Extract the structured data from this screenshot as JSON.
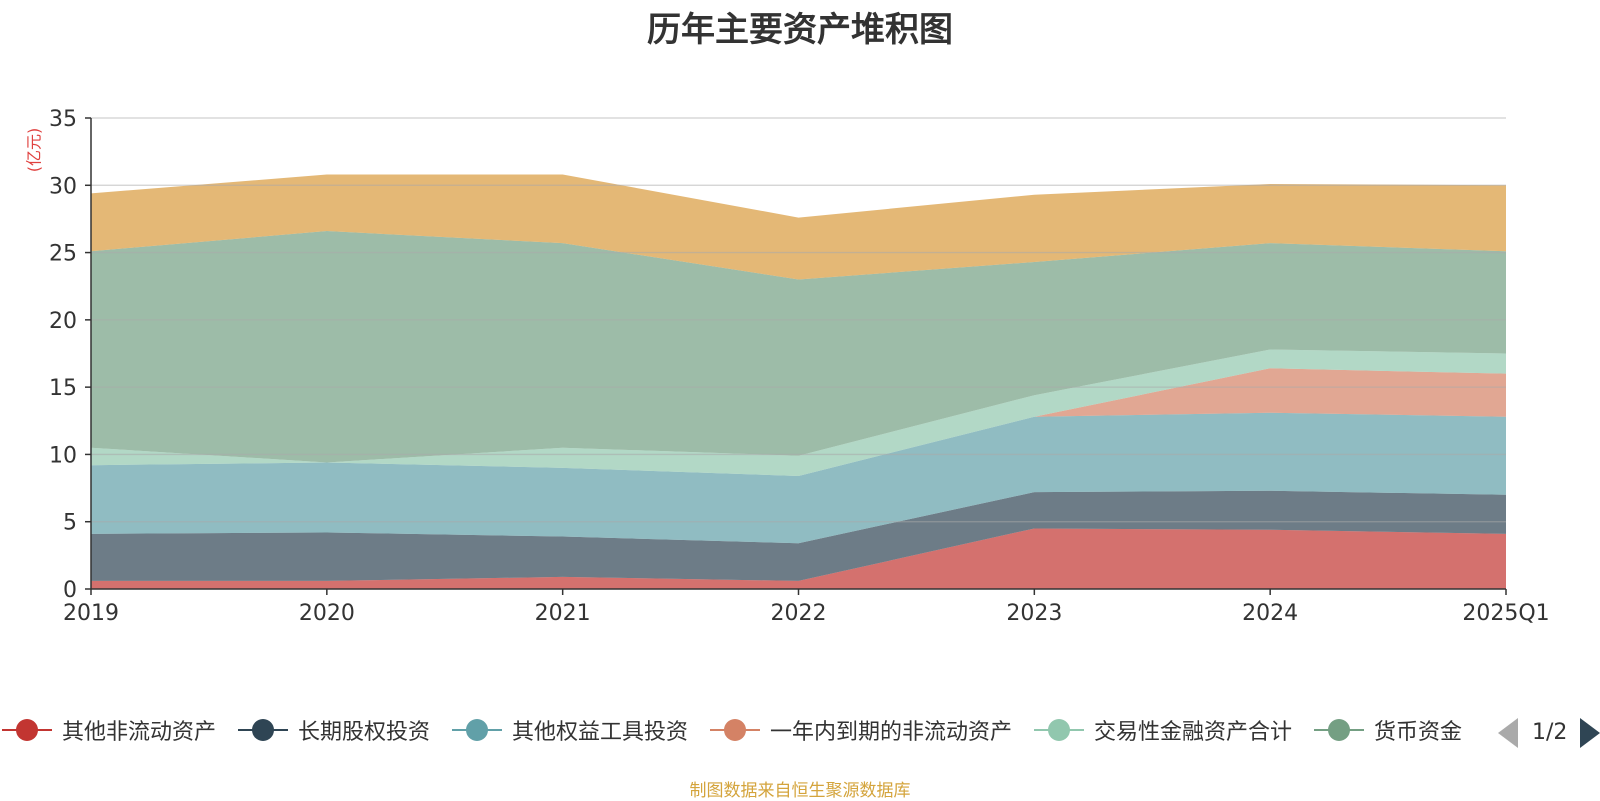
{
  "chart_data": {
    "type": "area",
    "stacked": true,
    "title": "历年主要资产堆积图",
    "ylabel": "(亿元)",
    "xlabel": "",
    "categories": [
      "2019",
      "2020",
      "2021",
      "2022",
      "2023",
      "2024",
      "2025Q1"
    ],
    "ylim": [
      0,
      35
    ],
    "yticks": [
      0,
      5,
      10,
      15,
      20,
      25,
      30,
      35
    ],
    "grid": true,
    "legend_position": "bottom",
    "series": [
      {
        "name": "其他非流动资产",
        "color": "#c23531",
        "values": [
          0.6,
          0.6,
          0.9,
          0.6,
          4.5,
          4.4,
          4.1
        ]
      },
      {
        "name": "长期股权投资",
        "color": "#2f4554",
        "values": [
          3.5,
          3.6,
          3.0,
          2.8,
          2.7,
          2.9,
          2.9
        ]
      },
      {
        "name": "其他权益工具投资",
        "color": "#61a0a8",
        "values": [
          5.1,
          5.2,
          5.1,
          5.0,
          5.6,
          5.8,
          5.8
        ]
      },
      {
        "name": "一年内到期的非流动资产",
        "color": "#d48265",
        "values": [
          0.0,
          0.0,
          0.0,
          0.0,
          0.0,
          3.3,
          3.2
        ]
      },
      {
        "name": "交易性金融资产合计",
        "color": "#91c7ae",
        "values": [
          1.3,
          0.0,
          1.5,
          1.5,
          1.6,
          1.4,
          1.5
        ]
      },
      {
        "name": "货币资金",
        "color": "#749f83",
        "values": [
          14.6,
          17.2,
          15.2,
          13.1,
          9.9,
          7.9,
          7.6
        ]
      },
      {
        "name": "",
        "color": "#d89a3c",
        "values": [
          4.3,
          4.2,
          5.1,
          4.6,
          5.0,
          4.4,
          4.9
        ]
      }
    ]
  },
  "legend": {
    "visible_items": [
      {
        "label": "其他非流动资产",
        "color": "#c23531"
      },
      {
        "label": "长期股权投资",
        "color": "#2f4554"
      },
      {
        "label": "其他权益工具投资",
        "color": "#61a0a8"
      },
      {
        "label": "一年内到期的非流动资产",
        "color": "#d48265"
      },
      {
        "label": "交易性金融资产合计",
        "color": "#91c7ae"
      },
      {
        "label": "货币资金",
        "color": "#749f83"
      }
    ],
    "page_text": "1/2"
  },
  "source_text": "制图数据来自恒生聚源数据库"
}
